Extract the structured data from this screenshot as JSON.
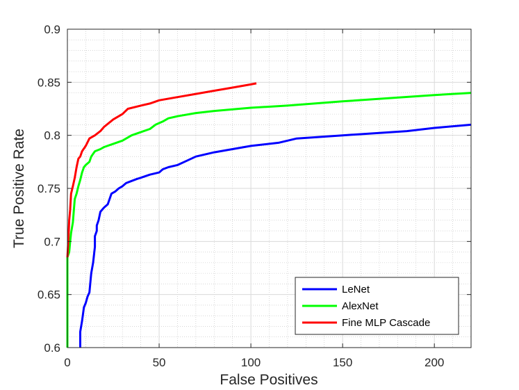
{
  "chart_data": {
    "type": "line",
    "xlabel": "False Positives",
    "ylabel": "True Positive Rate",
    "xlim": [
      0,
      220
    ],
    "ylim": [
      0.6,
      0.9
    ],
    "xticks": [
      0,
      50,
      100,
      150,
      200
    ],
    "xtick_labels": [
      "0",
      "50",
      "100",
      "150",
      "200"
    ],
    "yticks": [
      0.6,
      0.65,
      0.7,
      0.75,
      0.8,
      0.85,
      0.9
    ],
    "ytick_labels": [
      "0.6",
      "0.65",
      "0.7",
      "0.75",
      "0.8",
      "0.85",
      "0.9"
    ],
    "grid": true,
    "minor_grid": true,
    "legend_position": "bottom-right",
    "series": [
      {
        "name": "LeNet",
        "color": "#0000ff",
        "x": [
          7,
          7,
          8,
          9,
          10,
          11,
          12,
          13,
          14,
          15,
          15,
          16,
          16,
          17,
          18,
          19,
          20,
          22,
          24,
          26,
          28,
          30,
          32,
          35,
          38,
          40,
          45,
          50,
          52,
          55,
          60,
          65,
          70,
          80,
          90,
          100,
          115,
          125,
          150,
          185,
          200,
          220
        ],
        "y": [
          0.6,
          0.615,
          0.625,
          0.638,
          0.642,
          0.648,
          0.652,
          0.67,
          0.68,
          0.695,
          0.705,
          0.71,
          0.715,
          0.72,
          0.728,
          0.73,
          0.732,
          0.735,
          0.745,
          0.747,
          0.75,
          0.752,
          0.755,
          0.757,
          0.759,
          0.76,
          0.763,
          0.765,
          0.768,
          0.77,
          0.772,
          0.776,
          0.78,
          0.784,
          0.787,
          0.79,
          0.793,
          0.797,
          0.8,
          0.804,
          0.807,
          0.81
        ]
      },
      {
        "name": "AlexNet",
        "color": "#00ff00",
        "x": [
          0,
          0,
          1,
          1.5,
          2,
          3,
          4,
          5,
          6,
          7,
          8,
          9,
          10,
          12,
          13,
          15,
          18,
          20,
          25,
          30,
          35,
          40,
          45,
          48,
          52,
          55,
          60,
          70,
          80,
          100,
          120,
          150,
          175,
          200,
          220
        ],
        "y": [
          0.6,
          0.685,
          0.69,
          0.7,
          0.708,
          0.718,
          0.74,
          0.745,
          0.752,
          0.758,
          0.765,
          0.77,
          0.772,
          0.775,
          0.78,
          0.785,
          0.787,
          0.789,
          0.792,
          0.795,
          0.8,
          0.803,
          0.806,
          0.81,
          0.813,
          0.816,
          0.818,
          0.821,
          0.823,
          0.826,
          0.828,
          0.832,
          0.835,
          0.838,
          0.84
        ]
      },
      {
        "name": "Fine MLP Cascade",
        "color": "#ff0000",
        "x": [
          0,
          0.5,
          1,
          1.5,
          2,
          3,
          4,
          5,
          6,
          7,
          8,
          10,
          12,
          15,
          18,
          20,
          25,
          30,
          33,
          40,
          45,
          50,
          60,
          70,
          80,
          90,
          100,
          103
        ],
        "y": [
          0.685,
          0.7,
          0.72,
          0.73,
          0.745,
          0.752,
          0.76,
          0.77,
          0.778,
          0.78,
          0.785,
          0.79,
          0.797,
          0.8,
          0.804,
          0.808,
          0.815,
          0.82,
          0.825,
          0.828,
          0.83,
          0.833,
          0.836,
          0.839,
          0.842,
          0.845,
          0.848,
          0.849
        ]
      }
    ]
  }
}
